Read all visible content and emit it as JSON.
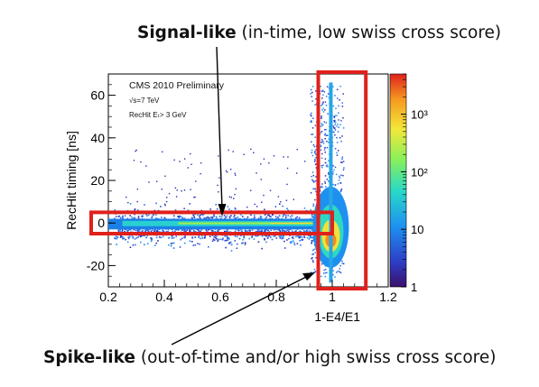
{
  "annotations": {
    "signal": {
      "bold": "Signal-like",
      "rest": " (in-time, low swiss cross score)"
    },
    "spike": {
      "bold": "Spike-like",
      "rest": " (out-of-time and/or high swiss cross score)"
    }
  },
  "chart_data": {
    "type": "heatmap",
    "title": "",
    "xlabel": "1-E4/E1",
    "ylabel": "RecHit timing [ns]",
    "xlim": [
      0.2,
      1.2
    ],
    "ylim": [
      -30,
      70
    ],
    "x_ticks": [
      "0.2",
      "0.4",
      "0.6",
      "0.8",
      "1",
      "1.2"
    ],
    "x_tick_values": [
      0.2,
      0.4,
      0.6,
      0.8,
      1.0,
      1.2
    ],
    "y_ticks": [
      "-20",
      "0",
      "20",
      "40",
      "60"
    ],
    "y_tick_values": [
      -20,
      0,
      20,
      40,
      60
    ],
    "text_annotations": [
      "CMS 2010 Preliminary",
      "√s=7 TeV",
      "RecHit Eₜ> 3 GeV"
    ],
    "colorbar": {
      "scale": "log",
      "range": [
        1,
        5000
      ],
      "tick_labels": [
        "1",
        "10",
        "10²",
        "10³"
      ],
      "tick_values": [
        1,
        10,
        100,
        1000
      ]
    },
    "highlight_regions": [
      {
        "label": "Signal-like",
        "x": [
          0.2,
          1.0
        ],
        "y": [
          -5,
          5
        ]
      },
      {
        "label": "Spike-like",
        "x": [
          0.95,
          1.12
        ],
        "y": [
          -30,
          70
        ]
      }
    ]
  }
}
